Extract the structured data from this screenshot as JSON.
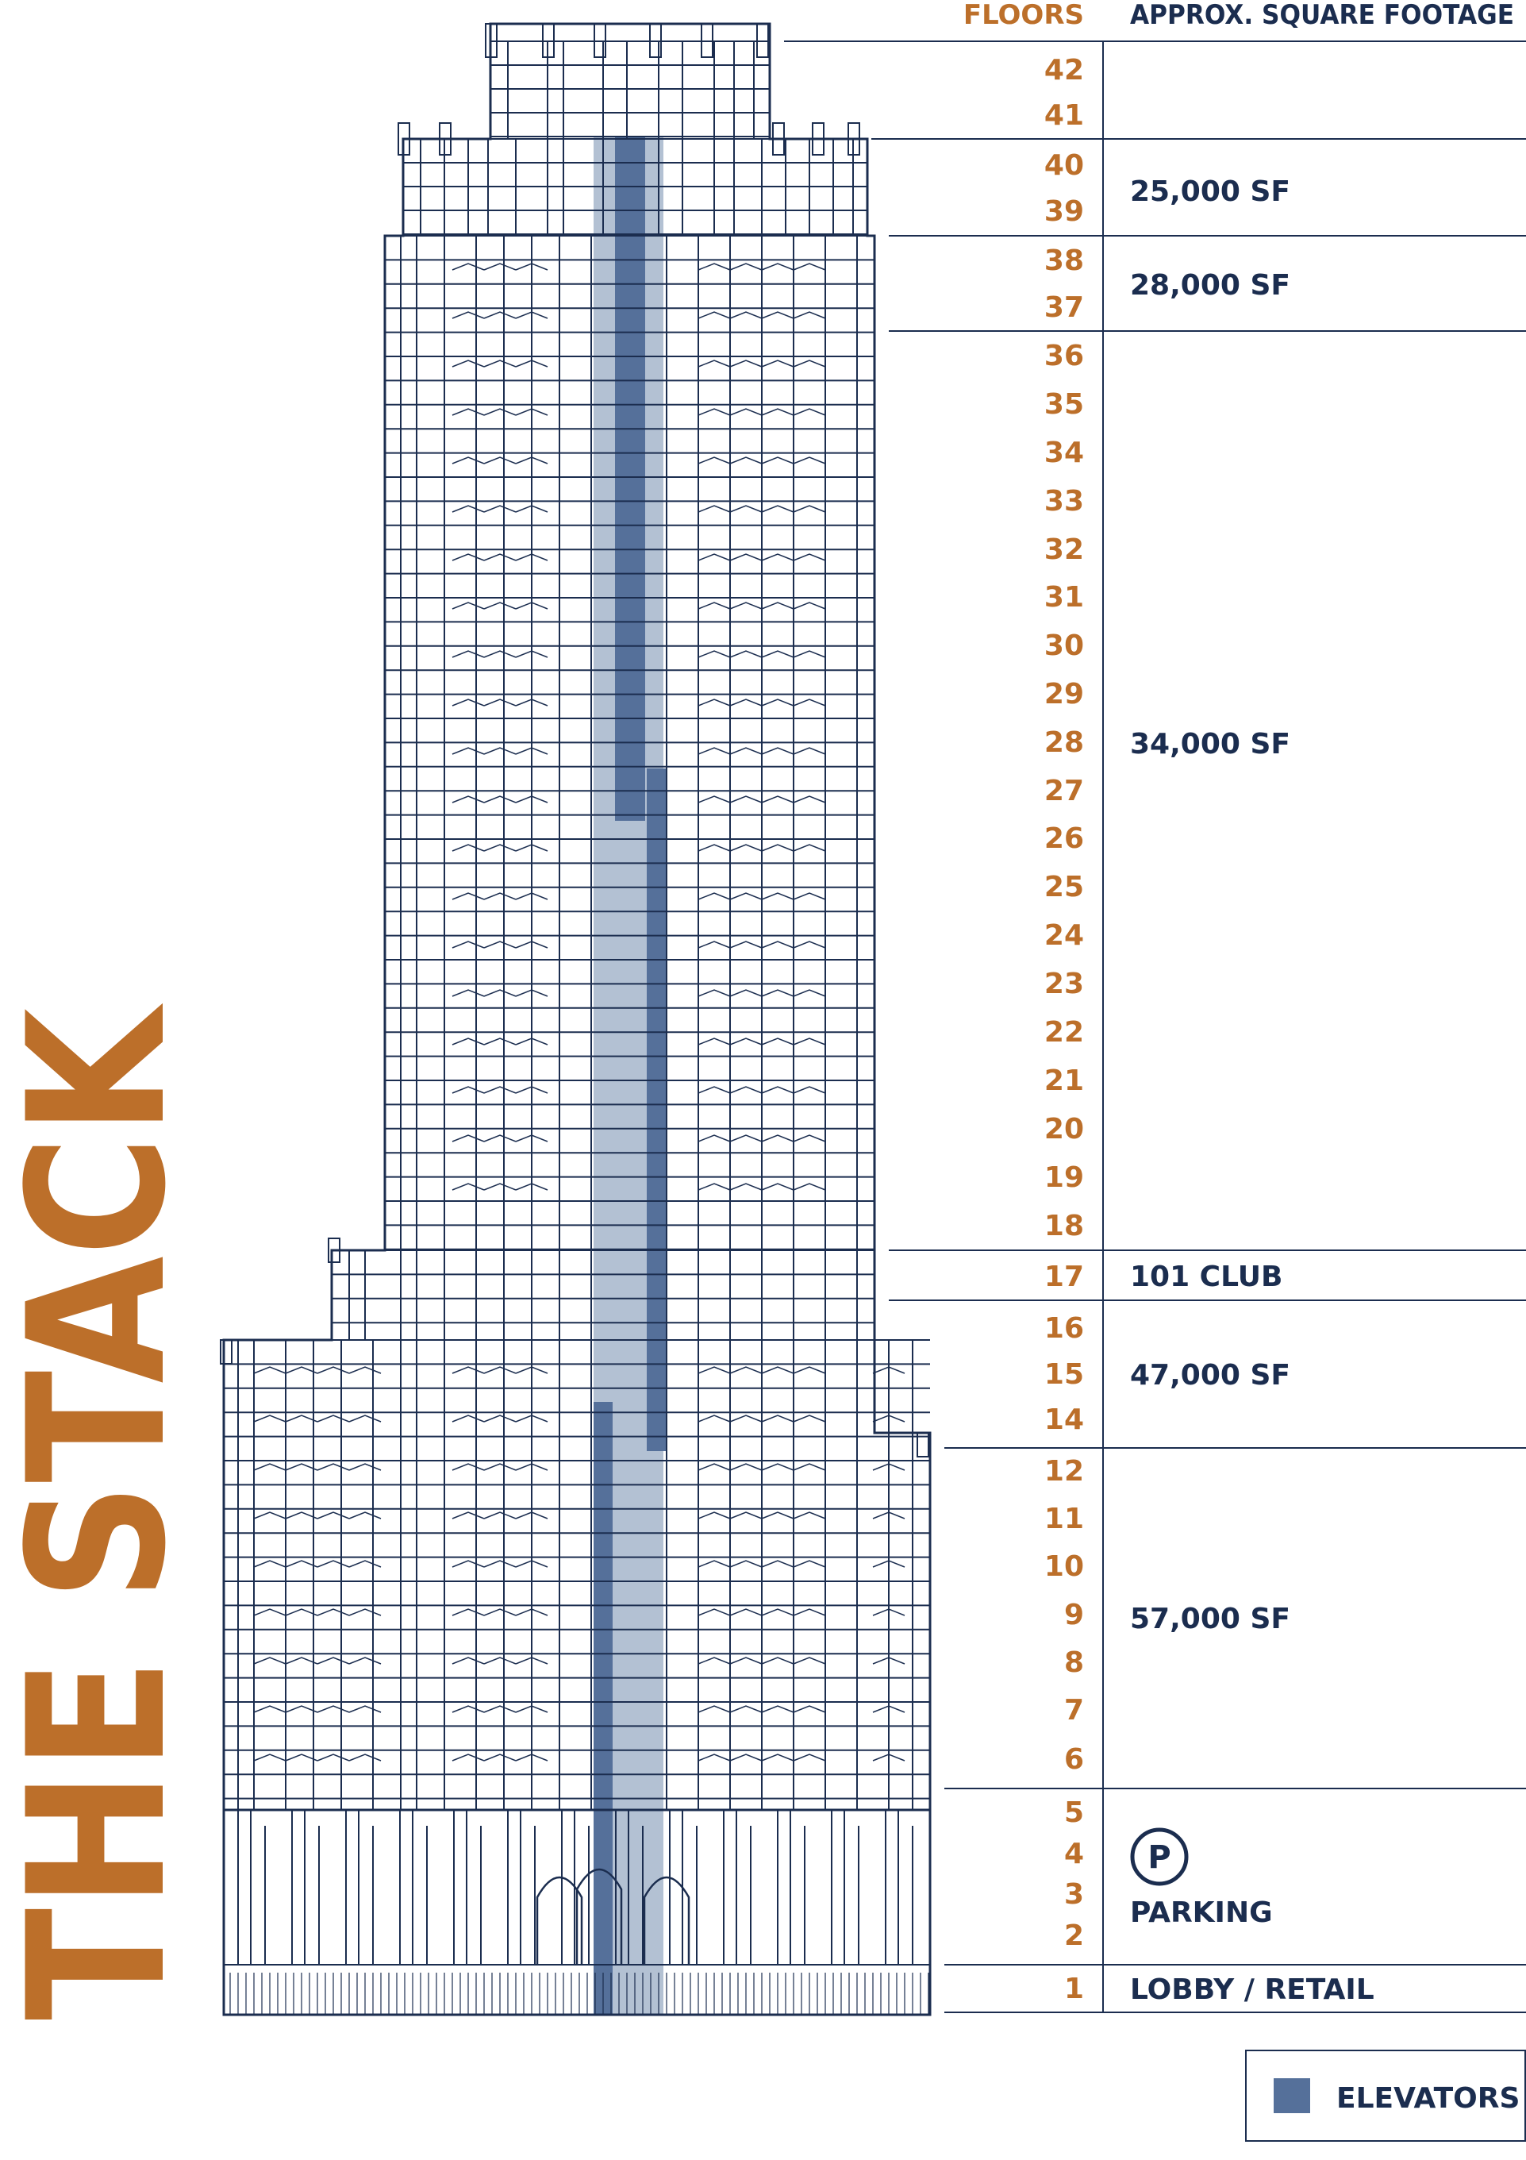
{
  "title": "THE STACK",
  "headers": {
    "floors": "FLOORS",
    "sqft": "APPROX. SQUARE FOOTAGE"
  },
  "colors": {
    "accent": "#bc6f2a",
    "navy": "#1b2d4f",
    "elevator_dark": "#55709a",
    "elevator_light": "#b3c1d3"
  },
  "floors": [
    "42",
    "41",
    "40",
    "39",
    "38",
    "37",
    "36",
    "35",
    "34",
    "33",
    "32",
    "31",
    "30",
    "29",
    "28",
    "27",
    "26",
    "25",
    "24",
    "23",
    "22",
    "21",
    "20",
    "19",
    "18",
    "17",
    "16",
    "15",
    "14",
    "12",
    "11",
    "10",
    "9",
    "8",
    "7",
    "6",
    "5",
    "4",
    "3",
    "2",
    "1"
  ],
  "sections": [
    {
      "floors": "42-41",
      "label": ""
    },
    {
      "floors": "40-39",
      "label": "25,000 SF"
    },
    {
      "floors": "38-37",
      "label": "28,000 SF"
    },
    {
      "floors": "36-18",
      "label": "34,000 SF"
    },
    {
      "floors": "17",
      "label": "101 CLUB"
    },
    {
      "floors": "16-14",
      "label": "47,000 SF"
    },
    {
      "floors": "12-6",
      "label": "57,000 SF"
    },
    {
      "floors": "5-2",
      "label": "PARKING",
      "icon": "parking-icon",
      "icon_text": "P"
    },
    {
      "floors": "1",
      "label": "LOBBY / RETAIL"
    }
  ],
  "legend": {
    "label": "ELEVATORS",
    "icon": "elevator-swatch"
  }
}
